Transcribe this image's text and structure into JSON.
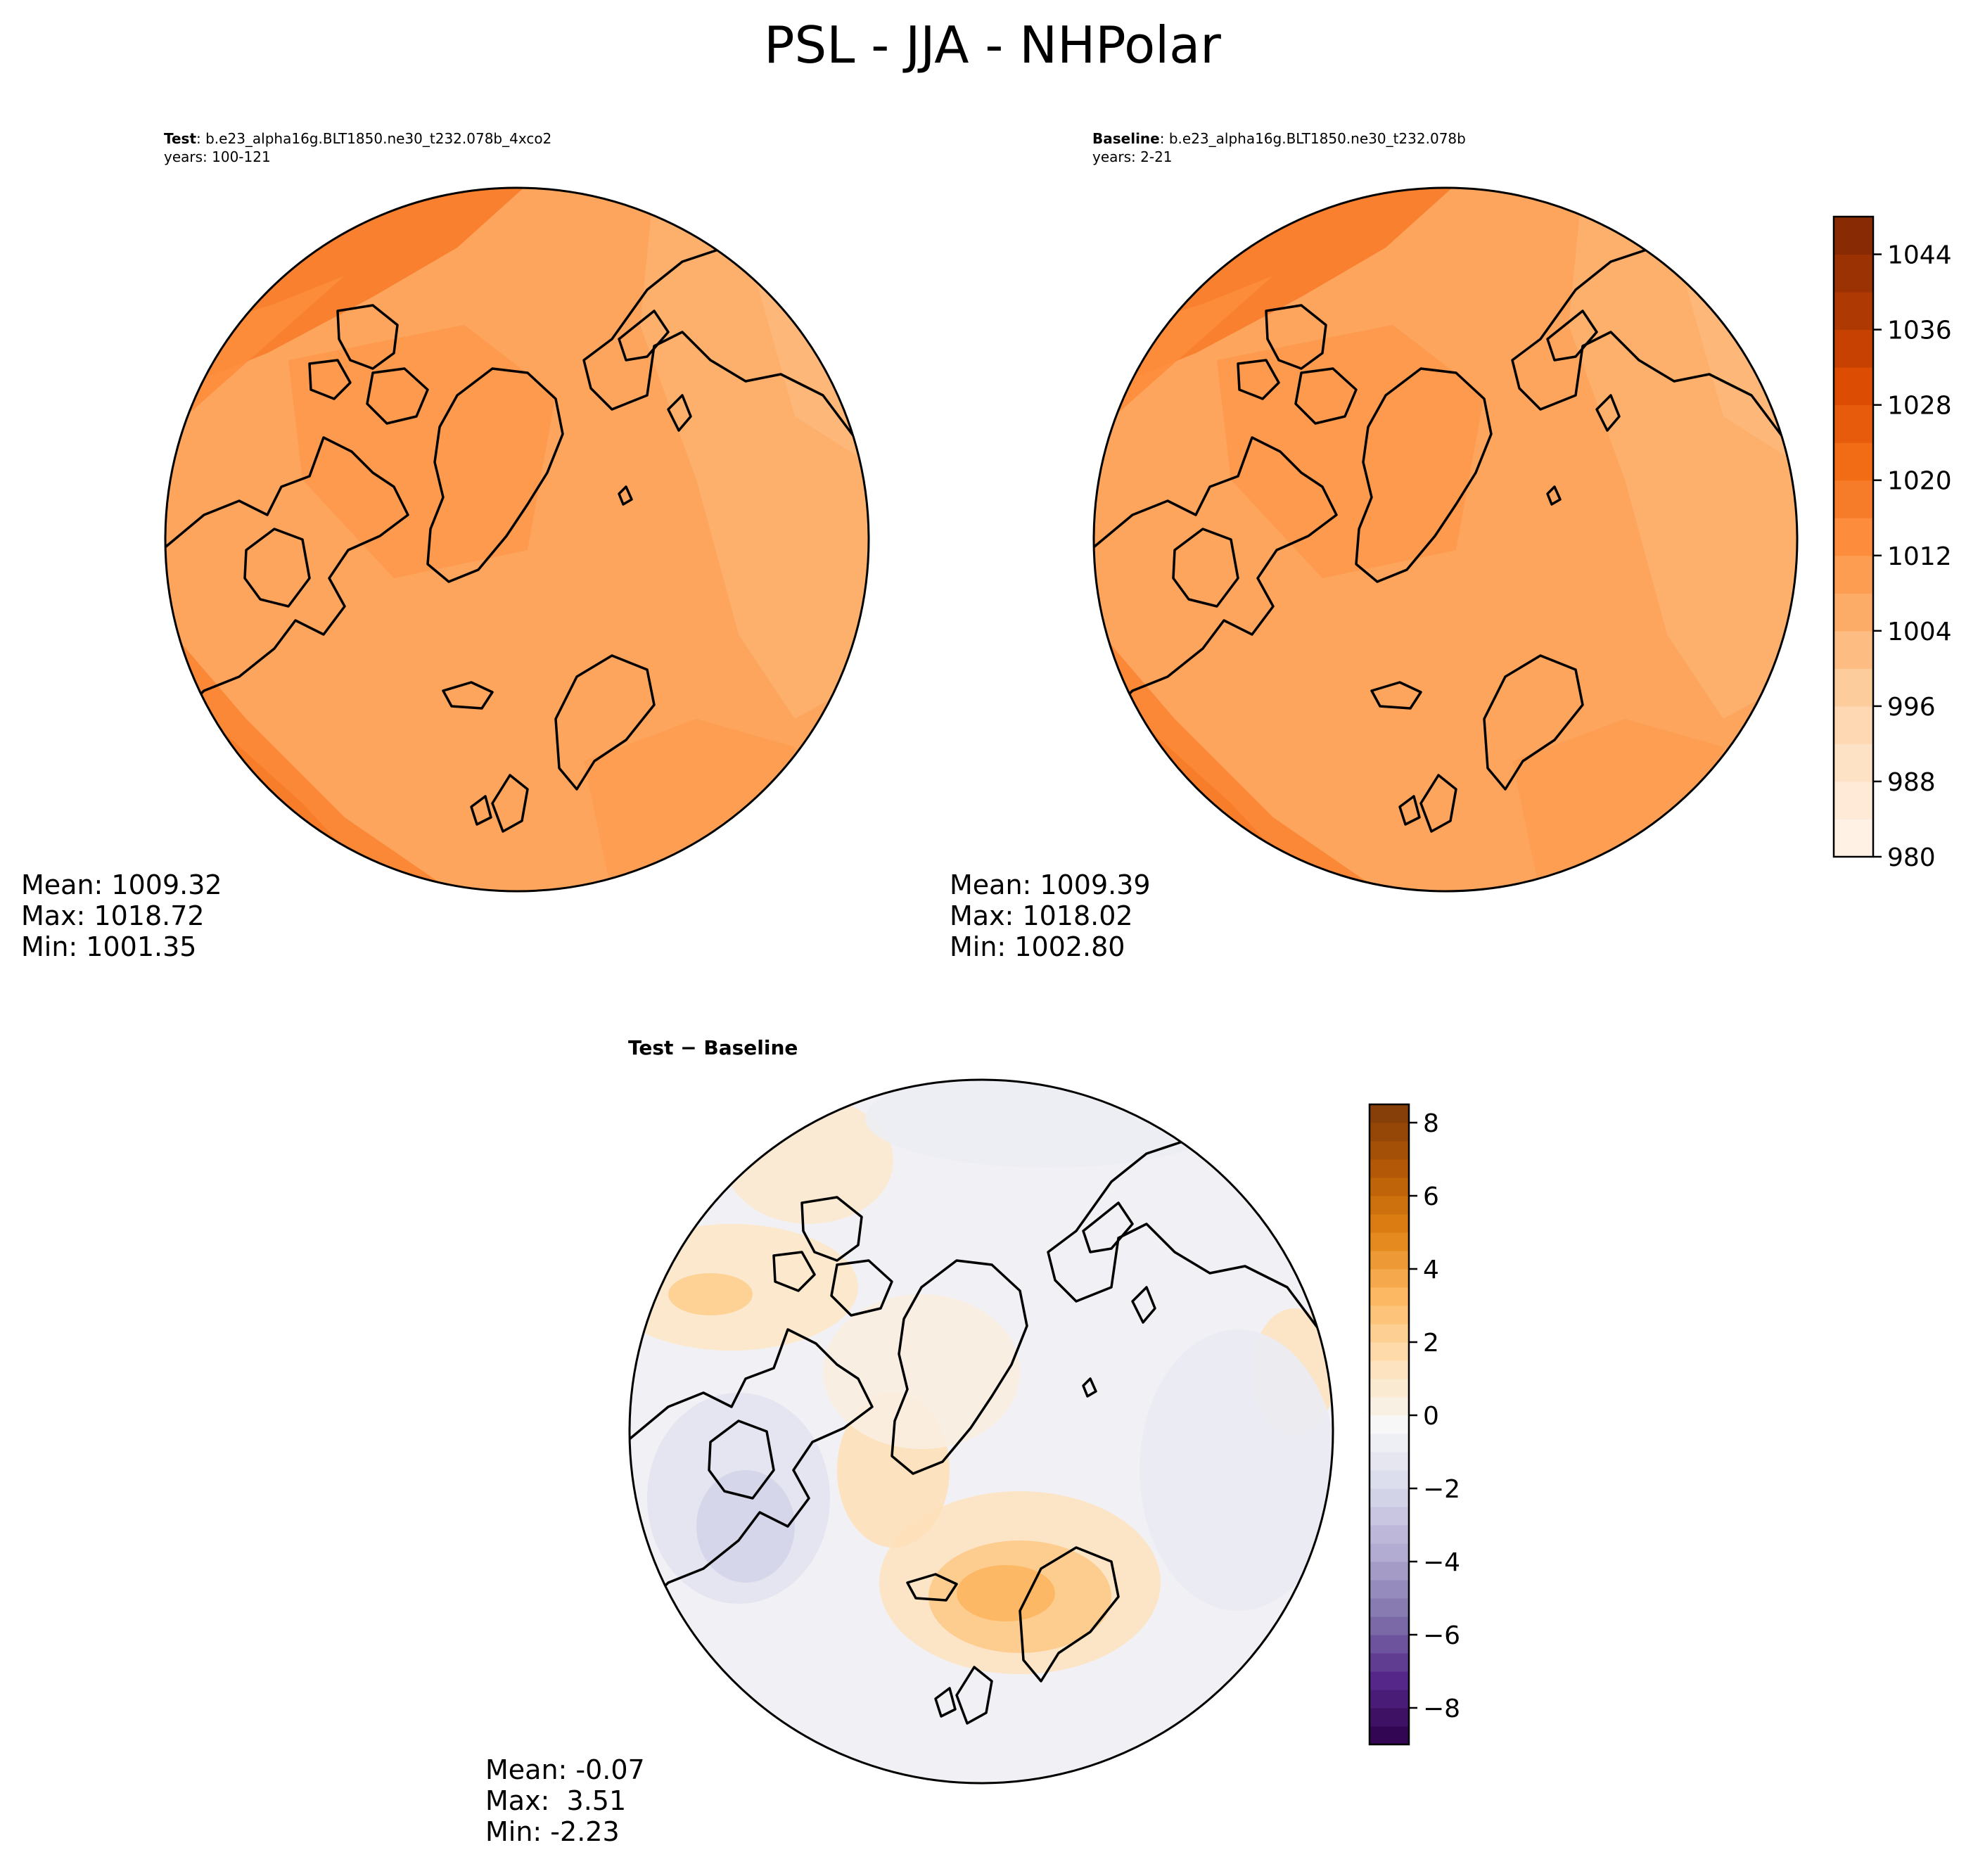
{
  "suptitle": "PSL - JJA - NHPolar",
  "panels": [
    {
      "id": "test",
      "label_bold": "Test",
      "label_rest": ": b.e23_alpha16g.BLT1850.ne30_t232.078b_4xco2",
      "years": "years: 100-121",
      "stats": {
        "mean": "Mean: 1009.32",
        "max": "Max: 1018.72",
        "min": "Min: 1001.35"
      }
    },
    {
      "id": "baseline",
      "label_bold": "Baseline",
      "label_rest": ": b.e23_alpha16g.BLT1850.ne30_t232.078b",
      "years": "years: 2-21",
      "stats": {
        "mean": "Mean: 1009.39",
        "max": "Max: 1018.02",
        "min": "Min: 1002.80"
      }
    },
    {
      "id": "diff",
      "title": "Test − Baseline",
      "stats": {
        "mean": "Mean: -0.07",
        "max": "Max:  3.51",
        "min": "Min: -2.23"
      }
    }
  ],
  "chart_data": [
    {
      "type": "heatmap",
      "name": "Test",
      "projection": "north polar stereographic",
      "colormap": "Oranges",
      "colorbar": {
        "min": 980,
        "max": 1048,
        "step": 4,
        "ticks": [
          "980",
          "988",
          "996",
          "1004",
          "1012",
          "1020",
          "1028",
          "1036",
          "1044"
        ]
      },
      "mean": 1009.32,
      "max": 1018.72,
      "min": 1001.35
    },
    {
      "type": "heatmap",
      "name": "Baseline",
      "projection": "north polar stereographic",
      "colormap": "Oranges",
      "colorbar": {
        "min": 980,
        "max": 1048,
        "step": 4,
        "ticks": [
          "980",
          "988",
          "996",
          "1004",
          "1012",
          "1020",
          "1028",
          "1036",
          "1044"
        ]
      },
      "mean": 1009.39,
      "max": 1018.02,
      "min": 1002.8
    },
    {
      "type": "heatmap",
      "name": "Test − Baseline",
      "projection": "north polar stereographic",
      "colormap": "PuOr_r",
      "colorbar": {
        "min": -9,
        "max": 8.5,
        "ticks": [
          "−8",
          "−6",
          "−4",
          "−2",
          "0",
          "2",
          "4",
          "6",
          "8"
        ],
        "tick_values": [
          -8,
          -6,
          -4,
          -2,
          0,
          2,
          4,
          6,
          8
        ]
      },
      "mean": -0.07,
      "max": 3.51,
      "min": -2.23
    }
  ]
}
